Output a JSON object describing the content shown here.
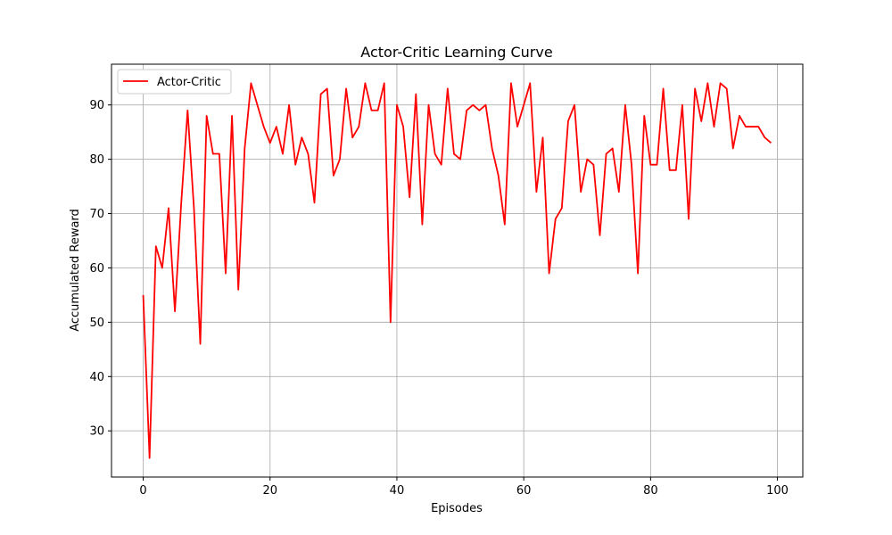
{
  "chart_data": {
    "type": "line",
    "title": "Actor-Critic Learning Curve",
    "xlabel": "Episodes",
    "ylabel": "Accumulated Reward",
    "xlim": [
      -5,
      104
    ],
    "ylim": [
      21.5,
      97.5
    ],
    "xticks": [
      0,
      20,
      40,
      60,
      80,
      100
    ],
    "yticks": [
      30,
      40,
      50,
      60,
      70,
      80,
      90
    ],
    "grid": true,
    "legend": "top-left",
    "series": [
      {
        "name": "Actor-Critic",
        "color": "#ff0000",
        "x": [
          0,
          1,
          2,
          3,
          4,
          5,
          6,
          7,
          8,
          9,
          10,
          11,
          12,
          13,
          14,
          15,
          16,
          17,
          18,
          19,
          20,
          21,
          22,
          23,
          24,
          25,
          26,
          27,
          28,
          29,
          30,
          31,
          32,
          33,
          34,
          35,
          36,
          37,
          38,
          39,
          40,
          41,
          42,
          43,
          44,
          45,
          46,
          47,
          48,
          49,
          50,
          51,
          52,
          53,
          54,
          55,
          56,
          57,
          58,
          59,
          60,
          61,
          62,
          63,
          64,
          65,
          66,
          67,
          68,
          69,
          70,
          71,
          72,
          73,
          74,
          75,
          76,
          77,
          78,
          79,
          80,
          81,
          82,
          83,
          84,
          85,
          86,
          87,
          88,
          89,
          90,
          91,
          92,
          93,
          94,
          95,
          96,
          97,
          98,
          99
        ],
        "y": [
          55,
          25,
          64,
          60,
          71,
          52,
          72,
          89,
          71,
          46,
          88,
          81,
          81,
          59,
          88,
          56,
          82,
          94,
          90,
          86,
          83,
          86,
          81,
          90,
          79,
          84,
          81,
          72,
          92,
          93,
          77,
          80,
          93,
          84,
          86,
          94,
          89,
          89,
          94,
          50,
          90,
          86,
          73,
          92,
          68,
          90,
          81,
          79,
          93,
          81,
          80,
          89,
          90,
          89,
          90,
          82,
          77,
          68,
          94,
          86,
          90,
          94,
          74,
          84,
          59,
          69,
          71,
          87,
          90,
          74,
          80,
          79,
          66,
          81,
          82,
          74,
          90,
          79,
          59,
          88,
          79,
          79,
          93,
          78,
          78,
          90,
          69,
          93,
          87,
          94,
          86,
          94,
          93,
          82,
          88,
          86,
          86,
          86,
          84,
          83
        ]
      }
    ]
  }
}
